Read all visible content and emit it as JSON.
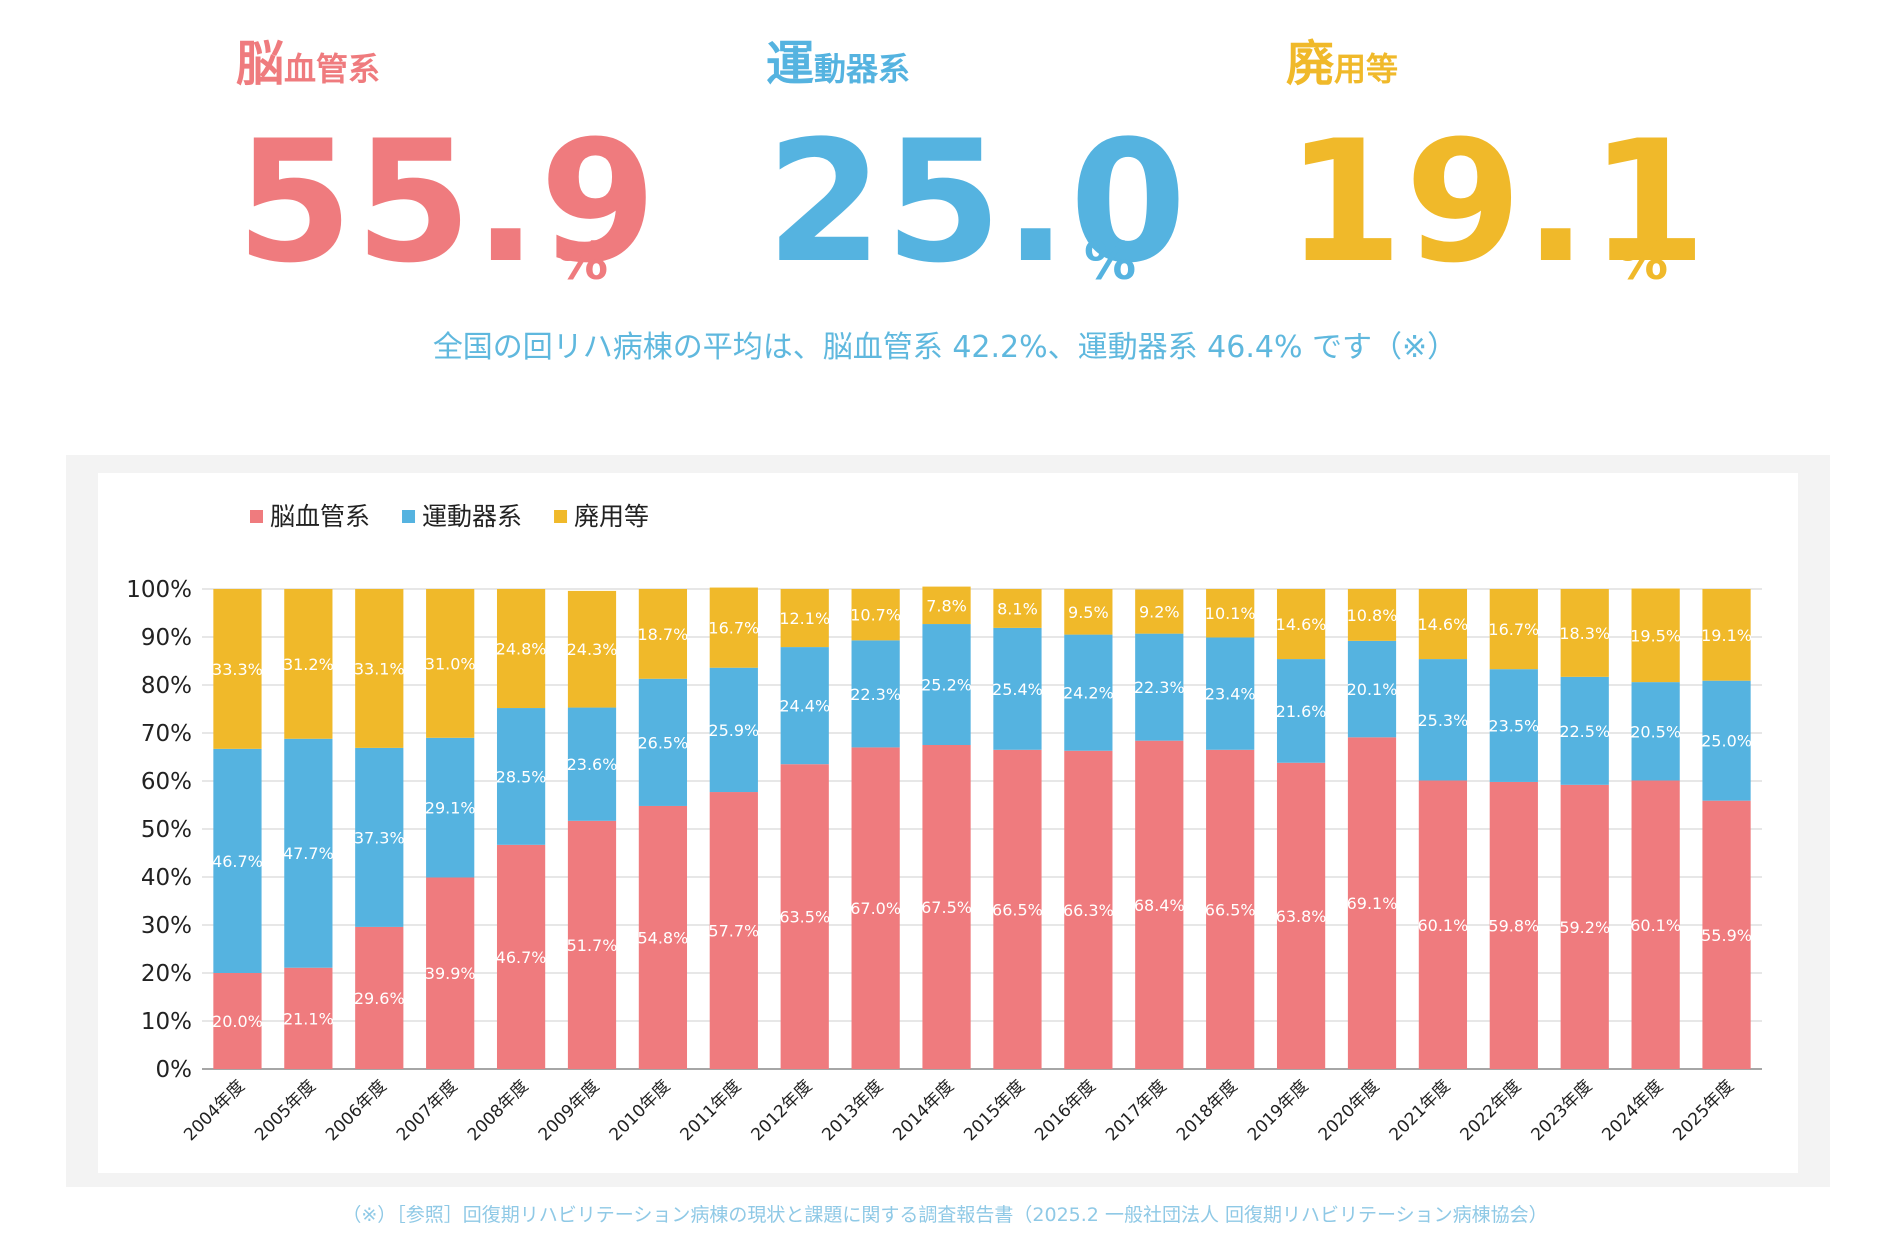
{
  "stats": [
    {
      "label_big": "脳",
      "label_rest": "血管系",
      "value": "55.9",
      "unit": "%",
      "color": "#ef7b7e"
    },
    {
      "label_big": "運",
      "label_rest": "動器系",
      "value": "25.0",
      "unit": "%",
      "color": "#55b3e0"
    },
    {
      "label_big": "廃",
      "label_rest": "用等",
      "value": "19.1",
      "unit": "%",
      "color": "#f0b92a"
    }
  ],
  "note": "全国の回リハ病棟の平均は、脳血管系 42.2%、運動器系 46.4% です（※）",
  "footnote": "（※）［参照］回復期リハビリテーション病棟の現状と課題に関する調査報告書（2025.2 一般社団法人 回復期リハビリテーション病棟協会）",
  "chart_data": {
    "type": "bar",
    "stacked": true,
    "categories": [
      "2004年度",
      "2005年度",
      "2006年度",
      "2007年度",
      "2008年度",
      "2009年度",
      "2010年度",
      "2011年度",
      "2012年度",
      "2013年度",
      "2014年度",
      "2015年度",
      "2016年度",
      "2017年度",
      "2018年度",
      "2019年度",
      "2020年度",
      "2021年度",
      "2022年度",
      "2023年度",
      "2024年度",
      "2025年度"
    ],
    "series": [
      {
        "name": "脳血管系",
        "color": "#ef7b7e",
        "values": [
          20.0,
          21.1,
          29.6,
          39.9,
          46.7,
          51.7,
          54.8,
          57.7,
          63.5,
          67.0,
          67.5,
          66.5,
          66.3,
          68.4,
          66.5,
          63.8,
          69.1,
          60.1,
          59.8,
          59.2,
          60.1,
          55.9
        ]
      },
      {
        "name": "運動器系",
        "color": "#55b3e0",
        "values": [
          46.7,
          47.7,
          37.3,
          29.1,
          28.5,
          23.6,
          26.5,
          25.9,
          24.4,
          22.3,
          25.2,
          25.4,
          24.2,
          22.3,
          23.4,
          21.6,
          20.1,
          25.3,
          23.5,
          22.5,
          20.5,
          25.0
        ]
      },
      {
        "name": "廃用等",
        "color": "#f0b92a",
        "values": [
          33.3,
          31.2,
          33.1,
          31.0,
          24.8,
          24.3,
          18.7,
          16.7,
          12.1,
          10.7,
          7.8,
          8.1,
          9.5,
          9.2,
          10.1,
          14.6,
          10.8,
          14.6,
          16.7,
          18.3,
          19.5,
          19.1
        ]
      }
    ],
    "yticks": [
      "0%",
      "10%",
      "20%",
      "30%",
      "40%",
      "50%",
      "60%",
      "70%",
      "80%",
      "90%",
      "100%"
    ],
    "ylim": [
      0,
      100
    ],
    "grid": true,
    "legend": "top-left"
  }
}
